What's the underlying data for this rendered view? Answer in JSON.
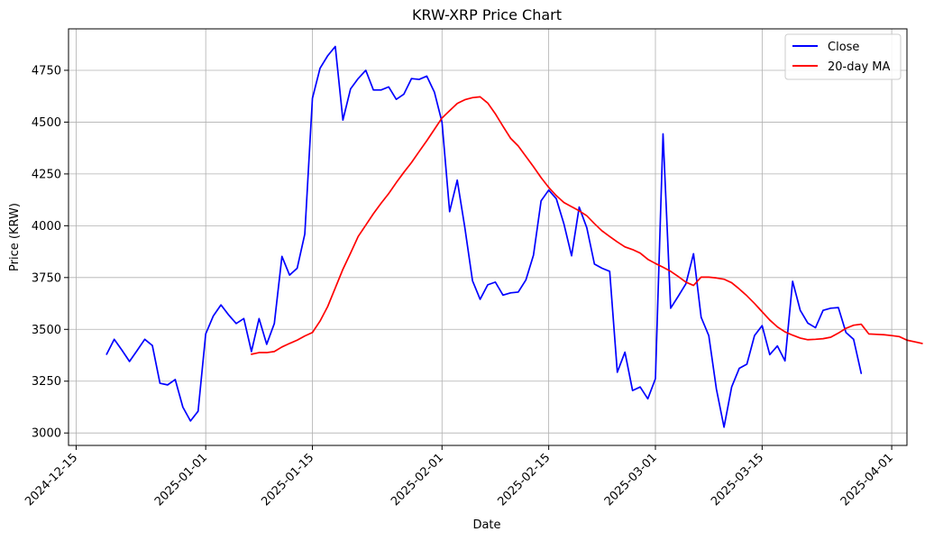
{
  "chart_data": {
    "type": "line",
    "title": "KRW-XRP Price Chart",
    "xlabel": "Date",
    "ylabel": "Price (KRW)",
    "grid": true,
    "legend_position": "top-right",
    "x_range": [
      "2024-12-14",
      "2025-04-03"
    ],
    "ylim": [
      2940,
      4950
    ],
    "x_ticks": [
      "2024-12-15",
      "2025-01-01",
      "2025-01-15",
      "2025-02-01",
      "2025-02-15",
      "2025-03-01",
      "2025-03-15",
      "2025-04-01"
    ],
    "x_tick_labels": [
      "2024-12-15",
      "2025-01-01",
      "2025-01-15",
      "2025-02-01",
      "2025-02-15",
      "2025-03-01",
      "2025-03-15",
      "2025-04-01"
    ],
    "y_ticks": [
      3000,
      3250,
      3500,
      3750,
      4000,
      4250,
      4500,
      4750
    ],
    "y_tick_labels": [
      "3000",
      "3250",
      "3500",
      "3750",
      "4000",
      "4250",
      "4500",
      "4750"
    ],
    "series": [
      {
        "name": "Close",
        "color": "#0000ff",
        "start_date": "2024-12-19",
        "values": [
          3380,
          3452,
          3400,
          3345,
          3398,
          3452,
          3422,
          3240,
          3232,
          3258,
          3125,
          3058,
          3105,
          3478,
          3565,
          3618,
          3570,
          3528,
          3552,
          3393,
          3552,
          3428,
          3528,
          3852,
          3762,
          3795,
          3960,
          4615,
          4760,
          4820,
          4865,
          4510,
          4660,
          4710,
          4750,
          4655,
          4655,
          4670,
          4610,
          4635,
          4710,
          4706,
          4722,
          4645,
          4500,
          4068,
          4220,
          3990,
          3735,
          3645,
          3715,
          3728,
          3665,
          3676,
          3680,
          3738,
          3858,
          4120,
          4172,
          4130,
          4008,
          3855,
          4090,
          3990,
          3815,
          3795,
          3780,
          3293,
          3390,
          3205,
          3222,
          3165,
          3262,
          4443,
          3602,
          3660,
          3720,
          3865,
          3558,
          3470,
          3212,
          3028,
          3222,
          3312,
          3332,
          3470,
          3518,
          3378,
          3420,
          3348,
          3732,
          3592,
          3530,
          3508,
          3592,
          3602,
          3605,
          3485,
          3452,
          3288
        ]
      },
      {
        "name": "20-day MA",
        "color": "#ff0000",
        "start_date": "2025-01-07",
        "values": [
          3380,
          3388,
          3388,
          3393,
          3415,
          3432,
          3448,
          3468,
          3485,
          3540,
          3610,
          3700,
          3790,
          3868,
          3948,
          4003,
          4058,
          4108,
          4155,
          4208,
          4258,
          4305,
          4358,
          4410,
          4465,
          4520,
          4555,
          4590,
          4608,
          4618,
          4622,
          4592,
          4540,
          4480,
          4422,
          4385,
          4335,
          4285,
          4232,
          4185,
          4145,
          4112,
          4092,
          4072,
          4048,
          4010,
          3975,
          3948,
          3922,
          3898,
          3885,
          3868,
          3838,
          3818,
          3800,
          3780,
          3755,
          3728,
          3712,
          3752,
          3752,
          3748,
          3742,
          3725,
          3695,
          3662,
          3625,
          3585,
          3545,
          3512,
          3488,
          3472,
          3458,
          3450,
          3452,
          3455,
          3462,
          3482,
          3505,
          3520,
          3525,
          3478,
          3476,
          3474,
          3470,
          3465,
          3448,
          3440,
          3432
        ]
      }
    ]
  }
}
